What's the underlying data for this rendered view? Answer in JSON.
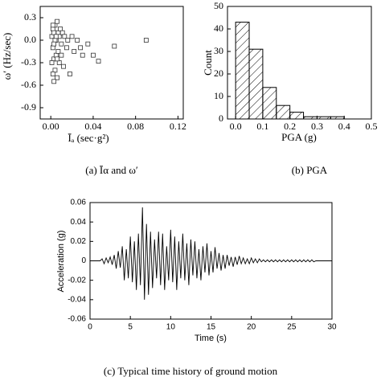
{
  "chart_data": [
    {
      "type": "scatter",
      "caption": "(a) Īα and ω′",
      "xlabel": "Īₐ (sec·g²)",
      "ylabel": "ω′ (Hz/sec)",
      "color": "#333333",
      "x": [
        0.001,
        0.002,
        0.002,
        0.003,
        0.003,
        0.004,
        0.004,
        0.005,
        0.005,
        0.006,
        0.006,
        0.007,
        0.007,
        0.008,
        0.008,
        0.009,
        0.01,
        0.01,
        0.011,
        0.012,
        0.013,
        0.015,
        0.016,
        0.018,
        0.02,
        0.022,
        0.025,
        0.028,
        0.03,
        0.035,
        0.04,
        0.045,
        0.06,
        0.09,
        0.001,
        0.002,
        0.003,
        0.004,
        0.005,
        0.006,
        0.003,
        0.002
      ],
      "y": [
        0.05,
        -0.1,
        0.15,
        -0.25,
        0.1,
        -0.4,
        0.2,
        0.0,
        -0.2,
        0.25,
        -0.5,
        0.1,
        -0.15,
        0.05,
        -0.3,
        0.15,
        -0.05,
        -0.2,
        0.1,
        -0.35,
        0.05,
        -0.1,
        0.0,
        -0.45,
        0.05,
        -0.15,
        0.0,
        -0.1,
        -0.2,
        -0.05,
        -0.2,
        -0.28,
        -0.08,
        0.0,
        -0.3,
        -0.45,
        -0.55,
        0.0,
        0.05,
        -0.25,
        -0.05,
        0.2
      ],
      "xlim": [
        -0.01,
        0.125
      ],
      "ylim": [
        -1.05,
        0.45
      ],
      "xticks": [
        {
          "value": 0,
          "label": "0.00"
        },
        0.04,
        0.08,
        0.12
      ],
      "yticks": [
        0.3,
        {
          "value": 0,
          "label": "0.0"
        },
        -0.3,
        -0.6,
        -0.9
      ]
    },
    {
      "type": "histogram",
      "caption": "(b) PGA",
      "xlabel": "PGA (g)",
      "ylabel": "Count",
      "color": "#000000",
      "bins": [
        0,
        0.05,
        0.1,
        0.15,
        0.2,
        0.25,
        0.3,
        0.35,
        0.4
      ],
      "counts": [
        43,
        31,
        14,
        6,
        3,
        1,
        1,
        1
      ],
      "xlim": [
        -0.03,
        0.5
      ],
      "ylim": [
        0,
        50
      ],
      "xticks": [
        {
          "value": 0,
          "label": "0.0"
        },
        0.1,
        0.2,
        0.3,
        0.4,
        0.5
      ],
      "yticks": [
        0,
        10,
        20,
        30,
        40,
        50
      ]
    },
    {
      "type": "line",
      "caption": "(c) Typical time history of ground motion",
      "xlabel": "Time (s)",
      "ylabel": "Acceleration (g)",
      "color": "#000000",
      "x": [
        0,
        0.25,
        0.5,
        0.75,
        1,
        1.25,
        1.5,
        1.75,
        2,
        2.25,
        2.5,
        2.75,
        3,
        3.25,
        3.5,
        3.75,
        4,
        4.25,
        4.5,
        4.75,
        5,
        5.25,
        5.5,
        5.75,
        6,
        6.25,
        6.5,
        6.75,
        7,
        7.25,
        7.5,
        7.75,
        8,
        8.25,
        8.5,
        8.75,
        9,
        9.25,
        9.5,
        9.75,
        10,
        10.25,
        10.5,
        10.75,
        11,
        11.25,
        11.5,
        11.75,
        12,
        12.25,
        12.5,
        12.75,
        13,
        13.25,
        13.5,
        13.75,
        14,
        14.25,
        14.5,
        14.75,
        15,
        15.25,
        15.5,
        15.75,
        16,
        16.25,
        16.5,
        16.75,
        17,
        17.25,
        17.5,
        17.75,
        18,
        18.25,
        18.5,
        18.75,
        19,
        19.25,
        19.5,
        19.75,
        20,
        20.25,
        20.5,
        20.75,
        21,
        21.25,
        21.5,
        21.75,
        22,
        22.25,
        22.5,
        22.75,
        23,
        23.25,
        23.5,
        23.75,
        24,
        24.25,
        24.5,
        24.75,
        25,
        25.25,
        25.5,
        25.75,
        26,
        26.25,
        26.5,
        26.75,
        27,
        27.25,
        27.5,
        27.75,
        28,
        28.25,
        28.5,
        28.75,
        29,
        29.25,
        29.5,
        29.75,
        30
      ],
      "values": [
        0,
        0,
        0,
        0,
        0,
        0,
        0.002,
        -0.003,
        0.003,
        -0.002,
        0.004,
        -0.004,
        0.006,
        -0.008,
        0.01,
        -0.007,
        0.015,
        -0.02,
        0.012,
        -0.018,
        0.025,
        -0.022,
        0.02,
        -0.03,
        0.028,
        -0.025,
        0.055,
        -0.04,
        0.038,
        -0.035,
        0.03,
        -0.028,
        0.022,
        -0.018,
        0.03,
        -0.025,
        0.028,
        -0.03,
        0.015,
        -0.02,
        0.032,
        -0.022,
        0.025,
        -0.03,
        0.02,
        -0.018,
        0.028,
        -0.02,
        0.018,
        -0.025,
        0.022,
        -0.015,
        0.02,
        -0.018,
        0.012,
        -0.02,
        0.015,
        -0.012,
        0.018,
        -0.015,
        0.01,
        -0.012,
        0.014,
        -0.008,
        0.008,
        -0.01,
        0.006,
        -0.008,
        0.006,
        -0.005,
        0.004,
        -0.006,
        0.004,
        -0.004,
        0.005,
        -0.003,
        0.003,
        -0.003,
        0.002,
        -0.003,
        0.003,
        -0.002,
        0.002,
        -0.002,
        0.002,
        -0.001,
        0.001,
        -0.001,
        0.001,
        -0.001,
        0.001,
        -0.001,
        0.001,
        -0.001,
        0.001,
        -0.001,
        0.001,
        -0.001,
        0.001,
        -0.001,
        0.001,
        -0.001,
        0.001,
        -0.001,
        0.001,
        -0.001,
        0.001,
        -0.001,
        0.001,
        -0.001,
        0.001,
        -0.001,
        0,
        0,
        0,
        0,
        0,
        0,
        0,
        0,
        0
      ],
      "xlim": [
        0,
        30
      ],
      "ylim": [
        -0.06,
        0.06
      ],
      "xticks": [
        0,
        5,
        10,
        15,
        20,
        25,
        30
      ],
      "yticks": [
        -0.06,
        -0.04,
        -0.02,
        0,
        0.02,
        0.04,
        0.06
      ]
    }
  ]
}
